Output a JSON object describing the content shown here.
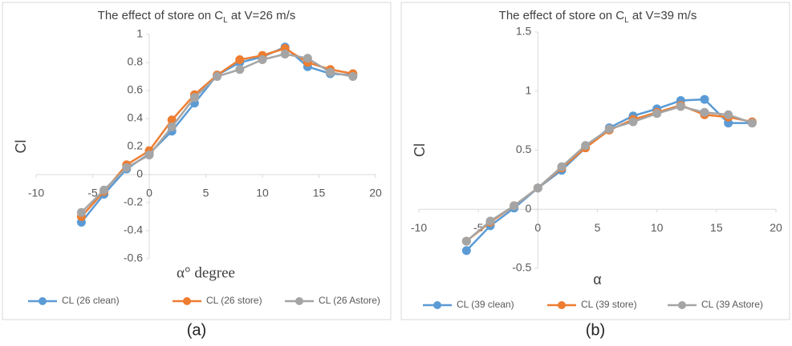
{
  "chart_data": [
    {
      "type": "line",
      "title": [
        "The effect of store on C",
        "L",
        " at V=26 m/s"
      ],
      "x_label": "α° degree",
      "y_label": "Cl",
      "caption": "(a)",
      "x": [
        -6,
        -4,
        -2,
        0,
        2,
        4,
        6,
        8,
        10,
        12,
        14,
        16,
        18
      ],
      "series": [
        {
          "name": "CL (26 clean)",
          "color": "#5b9bd5",
          "values": [
            -0.34,
            -0.14,
            0.04,
            0.15,
            0.31,
            0.51,
            0.71,
            0.8,
            0.84,
            0.91,
            0.77,
            0.72,
            0.71
          ]
        },
        {
          "name": "CL (26 store)",
          "color": "#ed7d31",
          "values": [
            -0.3,
            -0.12,
            0.07,
            0.17,
            0.39,
            0.57,
            0.71,
            0.82,
            0.85,
            0.9,
            0.8,
            0.75,
            0.72
          ]
        },
        {
          "name": "CL (26 Astore)",
          "color": "#a5a5a5",
          "values": [
            -0.27,
            -0.11,
            0.05,
            0.14,
            0.34,
            0.55,
            0.7,
            0.75,
            0.82,
            0.86,
            0.83,
            0.73,
            0.7
          ]
        }
      ],
      "xlim": [
        -10,
        20
      ],
      "xticks": [
        -10,
        -5,
        0,
        5,
        10,
        15,
        20
      ],
      "ylim": [
        -0.6,
        1
      ],
      "yticks": [
        -0.6,
        -0.4,
        -0.2,
        0,
        0.2,
        0.4,
        0.6,
        0.8,
        1
      ],
      "legend": "bottom"
    },
    {
      "type": "line",
      "title": [
        "The effect of store on C",
        "L",
        " at V=39 m/s"
      ],
      "x_label": "α",
      "y_label": "Cl",
      "caption": "(b)",
      "x": [
        -6,
        -4,
        -2,
        0,
        2,
        4,
        6,
        8,
        10,
        12,
        14,
        16,
        18
      ],
      "series": [
        {
          "name": "CL (39 clean)",
          "color": "#5b9bd5",
          "values": [
            -0.35,
            -0.14,
            0.01,
            0.18,
            0.33,
            0.52,
            0.69,
            0.79,
            0.85,
            0.92,
            0.93,
            0.73,
            0.73
          ]
        },
        {
          "name": "CL (39 store)",
          "color": "#ed7d31",
          "values": [
            -0.27,
            -0.11,
            0.03,
            0.18,
            0.35,
            0.52,
            0.67,
            0.76,
            0.82,
            0.88,
            0.8,
            0.78,
            0.74
          ]
        },
        {
          "name": "CL (39 Astore)",
          "color": "#a5a5a5",
          "values": [
            -0.27,
            -0.1,
            0.03,
            0.18,
            0.36,
            0.54,
            0.68,
            0.74,
            0.81,
            0.87,
            0.82,
            0.8,
            0.73
          ]
        }
      ],
      "xlim": [
        -10,
        20
      ],
      "xticks": [
        -10,
        -5,
        0,
        5,
        10,
        15,
        20
      ],
      "ylim": [
        -0.5,
        1.5
      ],
      "yticks": [
        -0.5,
        0,
        0.5,
        1,
        1.5
      ],
      "legend": "bottom"
    }
  ]
}
